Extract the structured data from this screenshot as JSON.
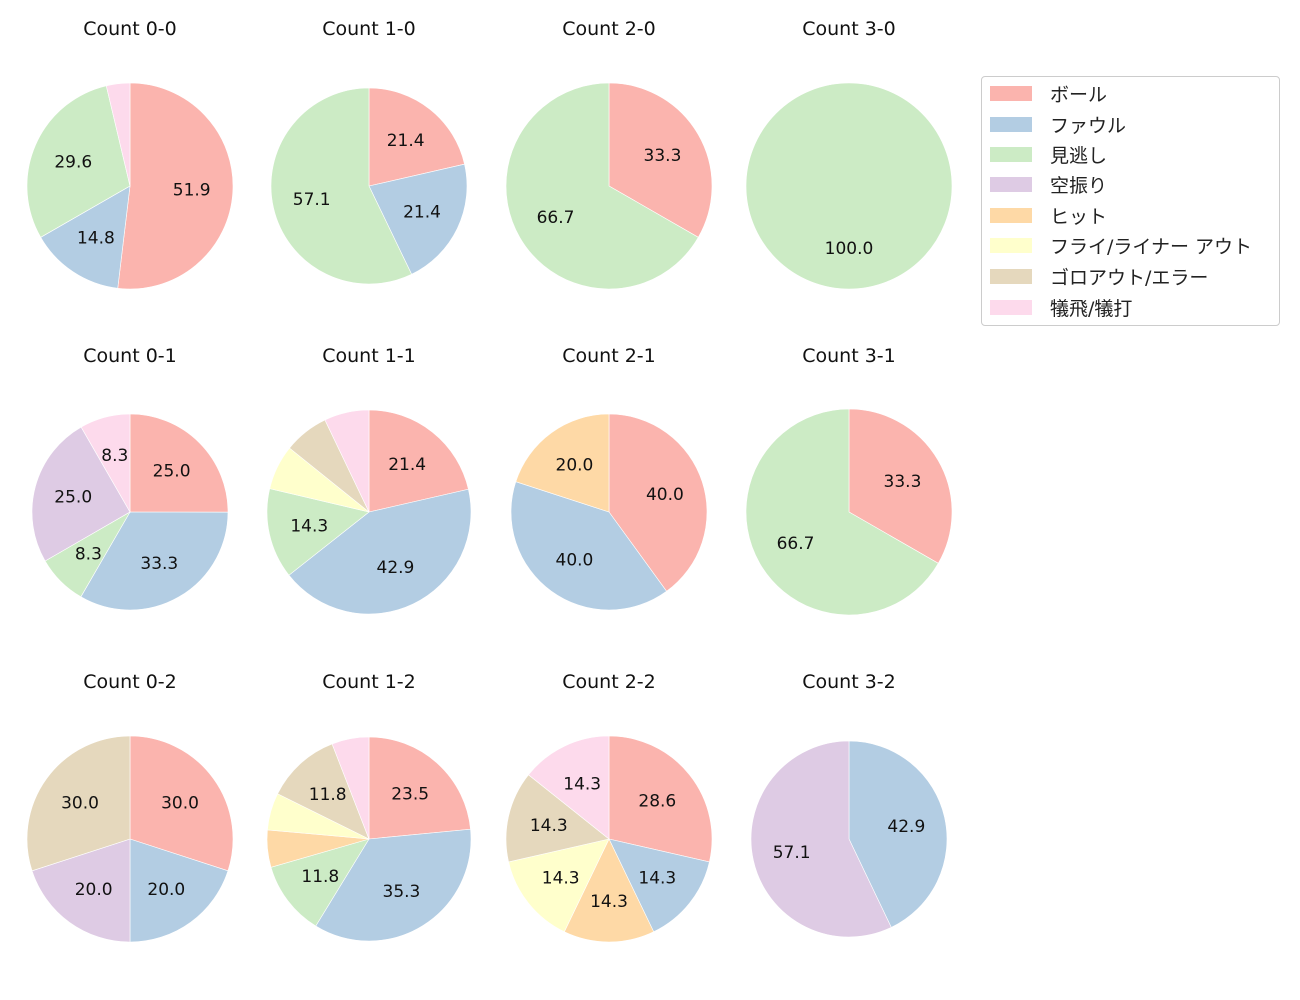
{
  "chart_data": {
    "type": "pie",
    "title": "",
    "categories": [
      "ボール",
      "ファウル",
      "見逃し",
      "空振り",
      "ヒット",
      "フライ/ライナー アウト",
      "ゴロアウト/エラー",
      "犠飛/犠打"
    ],
    "colors": [
      "#fbb4ae",
      "#b3cde3",
      "#ccebc5",
      "#decbe4",
      "#fed9a6",
      "#ffffcc",
      "#e5d8bd",
      "#fddaec"
    ],
    "legend_position": "upper right",
    "charts": [
      {
        "title": "Count 0-0",
        "values": [
          51.9,
          14.8,
          29.6,
          0,
          0,
          0,
          0,
          3.7
        ],
        "labels": [
          "51.9",
          "14.8",
          "29.6",
          "",
          "",
          "",
          "",
          ""
        ]
      },
      {
        "title": "Count 1-0",
        "values": [
          21.4,
          21.4,
          57.1,
          0,
          0,
          0,
          0,
          0
        ],
        "labels": [
          "21.4",
          "21.4",
          "57.1",
          "",
          "",
          "",
          "",
          ""
        ]
      },
      {
        "title": "Count 2-0",
        "values": [
          33.3,
          0,
          66.7,
          0,
          0,
          0,
          0,
          0
        ],
        "labels": [
          "33.3",
          "",
          "66.7",
          "",
          "",
          "",
          "",
          ""
        ]
      },
      {
        "title": "Count 3-0",
        "values": [
          0,
          0,
          100.0,
          0,
          0,
          0,
          0,
          0
        ],
        "labels": [
          "",
          "",
          "100.0",
          "",
          "",
          "",
          "",
          ""
        ]
      },
      {
        "title": "Count 0-1",
        "values": [
          25.0,
          33.3,
          8.3,
          25.0,
          0,
          0,
          0,
          8.3
        ],
        "labels": [
          "25.0",
          "33.3",
          "8.3",
          "25.0",
          "",
          "",
          "",
          "8.3"
        ]
      },
      {
        "title": "Count 1-1",
        "values": [
          21.4,
          42.9,
          14.3,
          0,
          0,
          7.1,
          7.1,
          7.1
        ],
        "labels": [
          "21.4",
          "42.9",
          "14.3",
          "",
          "",
          "",
          "",
          ""
        ]
      },
      {
        "title": "Count 2-1",
        "values": [
          40.0,
          40.0,
          0,
          0,
          20.0,
          0,
          0,
          0
        ],
        "labels": [
          "40.0",
          "40.0",
          "",
          "",
          "20.0",
          "",
          "",
          ""
        ]
      },
      {
        "title": "Count 3-1",
        "values": [
          33.3,
          0,
          66.7,
          0,
          0,
          0,
          0,
          0
        ],
        "labels": [
          "33.3",
          "",
          "66.7",
          "",
          "",
          "",
          "",
          ""
        ]
      },
      {
        "title": "Count 0-2",
        "values": [
          30.0,
          20.0,
          0,
          20.0,
          0,
          0,
          30.0,
          0
        ],
        "labels": [
          "30.0",
          "20.0",
          "",
          "20.0",
          "",
          "",
          "30.0",
          ""
        ]
      },
      {
        "title": "Count 1-2",
        "values": [
          23.5,
          35.3,
          11.8,
          0,
          5.9,
          5.9,
          11.8,
          5.9
        ],
        "labels": [
          "23.5",
          "35.3",
          "11.8",
          "",
          "",
          "",
          "11.8",
          ""
        ]
      },
      {
        "title": "Count 2-2",
        "values": [
          28.6,
          14.3,
          0,
          0,
          14.3,
          14.3,
          14.3,
          14.3
        ],
        "labels": [
          "28.6",
          "14.3",
          "",
          "",
          "14.3",
          "14.3",
          "14.3",
          "14.3"
        ]
      },
      {
        "title": "Count 3-2",
        "values": [
          0,
          42.9,
          0,
          57.1,
          0,
          0,
          0,
          0
        ],
        "labels": [
          "",
          "42.9",
          "",
          "57.1",
          "",
          "",
          "",
          ""
        ]
      }
    ]
  },
  "legend": {
    "items": [
      {
        "label": "ボール",
        "color": "#fbb4ae"
      },
      {
        "label": "ファウル",
        "color": "#b3cde3"
      },
      {
        "label": "見逃し",
        "color": "#ccebc5"
      },
      {
        "label": "空振り",
        "color": "#decbe4"
      },
      {
        "label": "ヒット",
        "color": "#fed9a6"
      },
      {
        "label": "フライ/ライナー アウト",
        "color": "#ffffcc"
      },
      {
        "label": "ゴロアウト/エラー",
        "color": "#e5d8bd"
      },
      {
        "label": "犠飛/犠打",
        "color": "#fddaec"
      }
    ]
  }
}
